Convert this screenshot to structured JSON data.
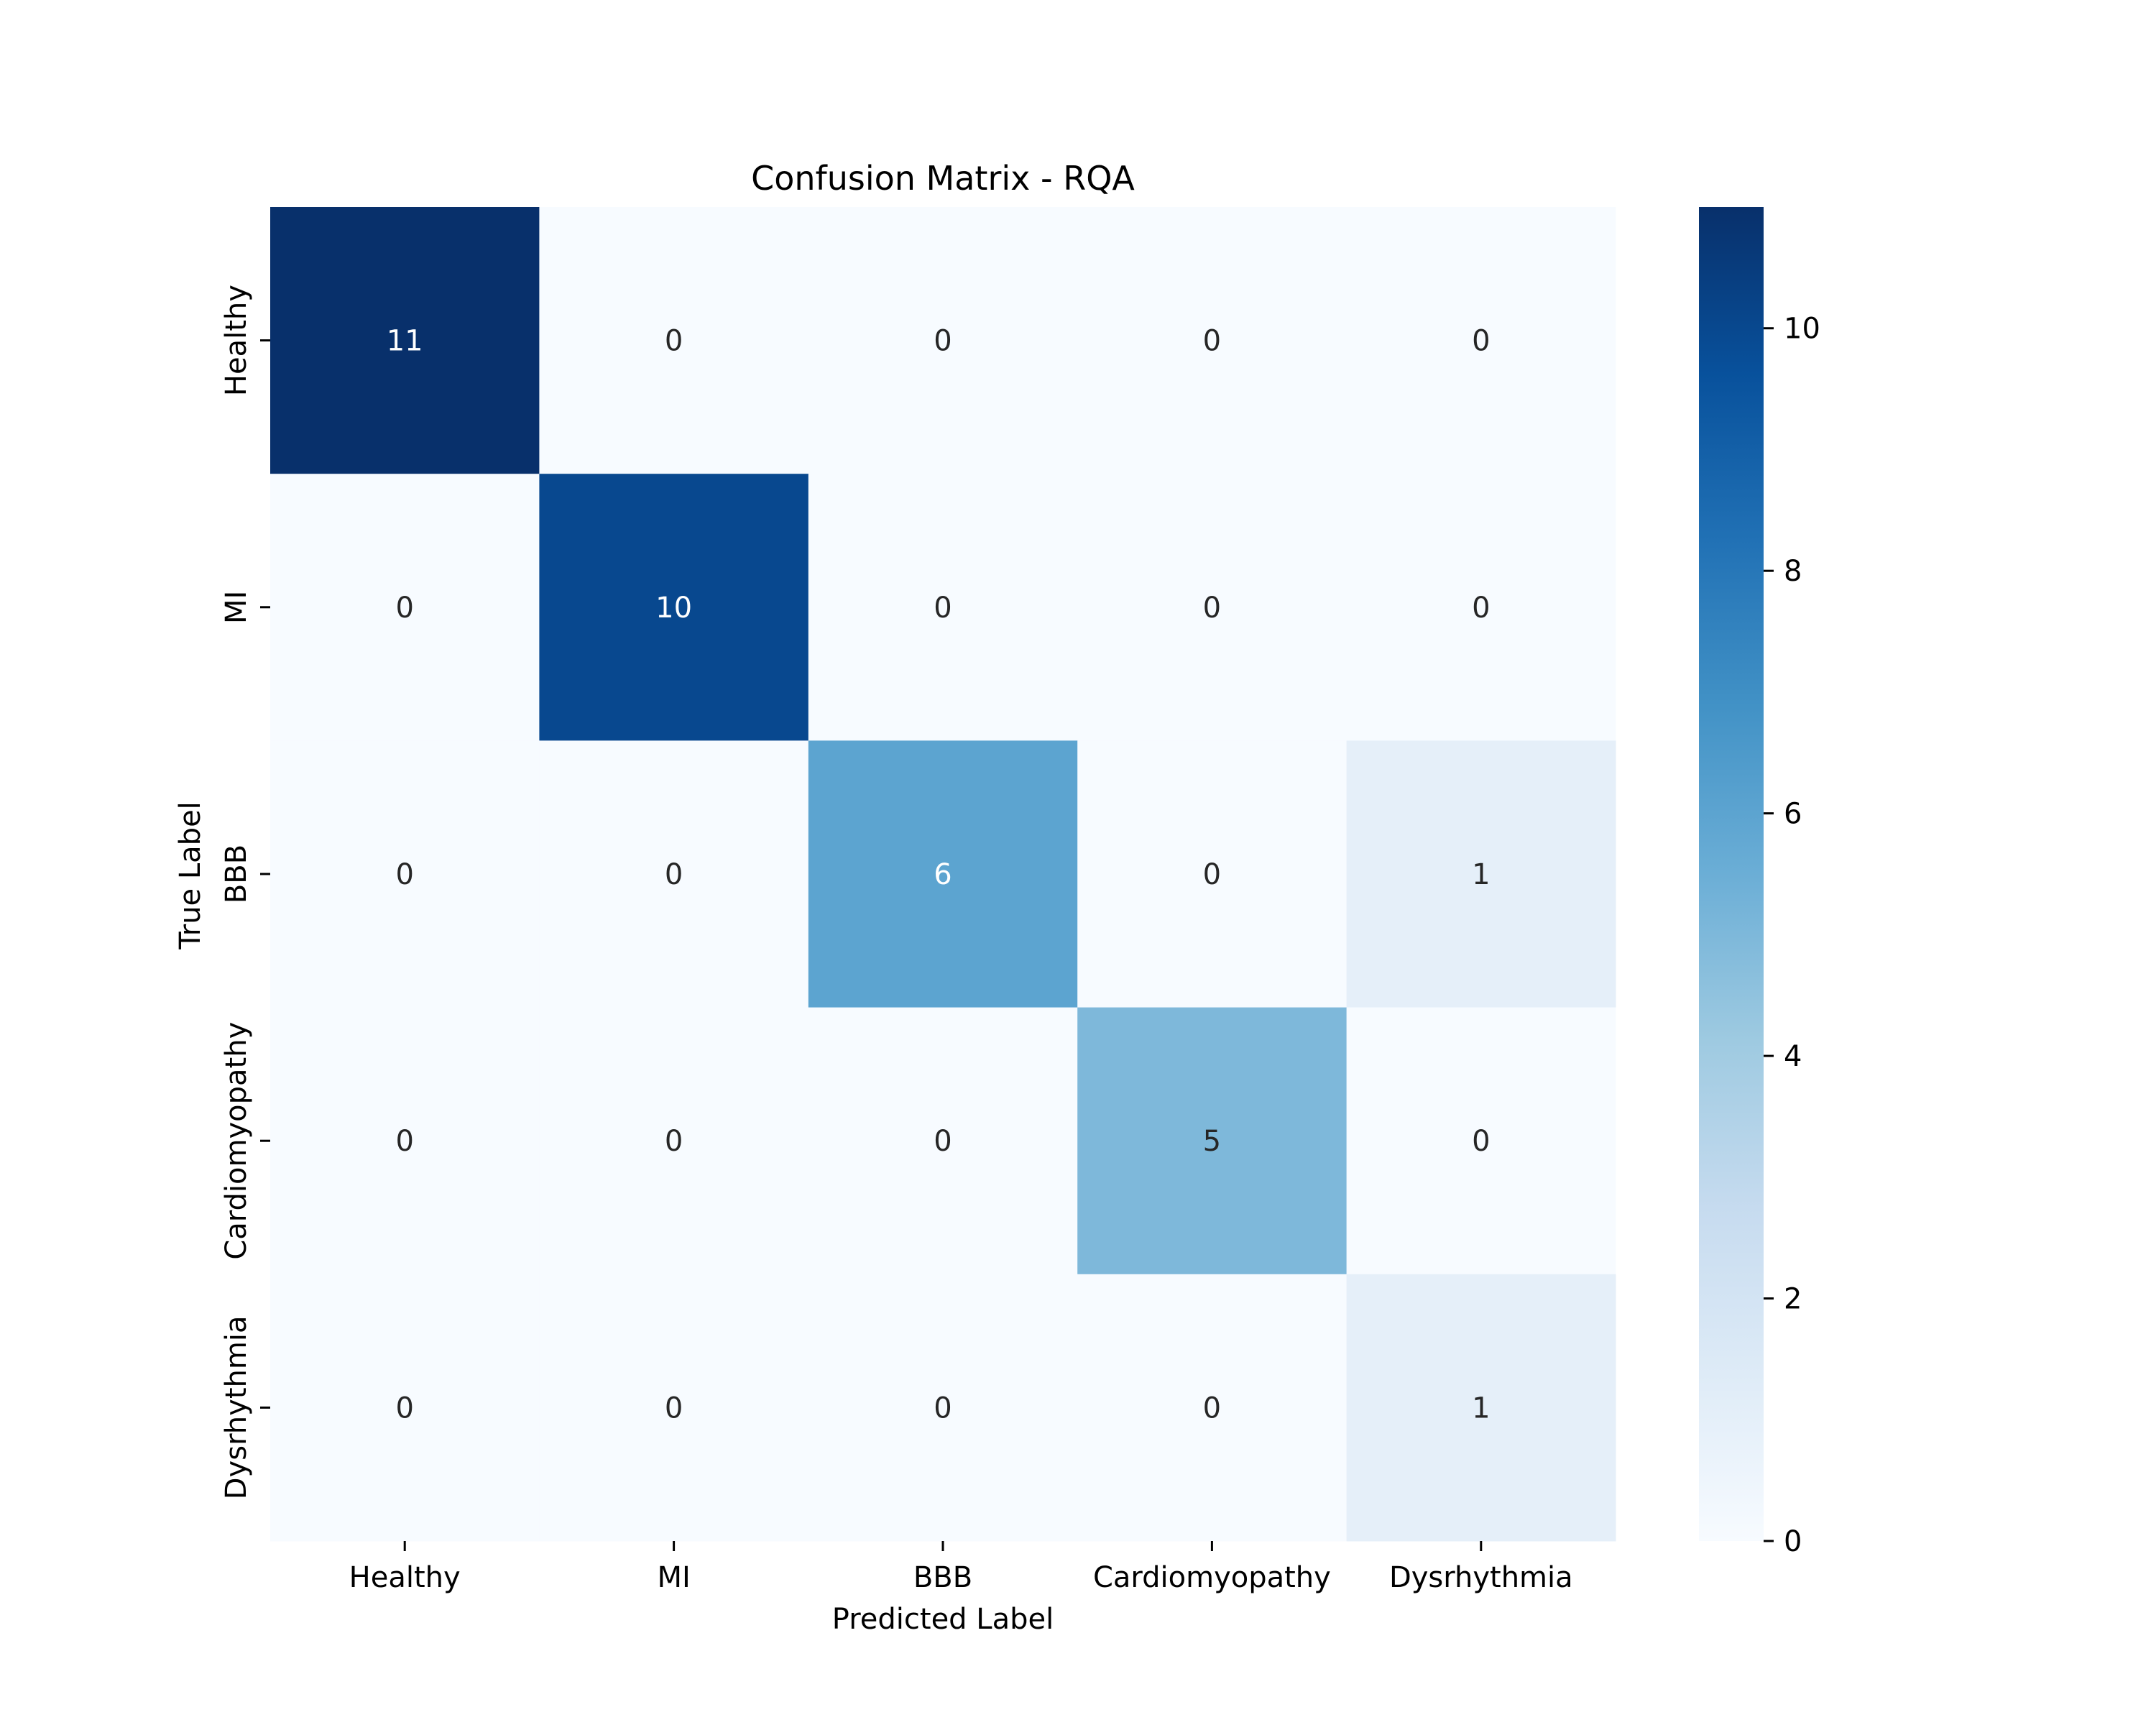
{
  "chart_data": {
    "type": "heatmap",
    "title": "Confusion Matrix - RQA",
    "xlabel": "Predicted Label",
    "ylabel": "True Label",
    "x_categories": [
      "Healthy",
      "MI",
      "BBB",
      "Cardiomyopathy",
      "Dysrhythmia"
    ],
    "y_categories": [
      "Healthy",
      "MI",
      "BBB",
      "Cardiomyopathy",
      "Dysrhythmia"
    ],
    "matrix": [
      [
        11,
        0,
        0,
        0,
        0
      ],
      [
        0,
        10,
        0,
        0,
        0
      ],
      [
        0,
        0,
        6,
        0,
        1
      ],
      [
        0,
        0,
        0,
        5,
        0
      ],
      [
        0,
        0,
        0,
        0,
        1
      ]
    ],
    "colormap": "Blues",
    "colorbar": {
      "range": [
        0,
        11
      ],
      "ticks": [
        0,
        2,
        4,
        6,
        8,
        10
      ],
      "tick_labels": [
        "0",
        "2",
        "4",
        "6",
        "8",
        "10"
      ]
    },
    "annotation_colors": {
      "dark_text": "#262626",
      "light_text": "#ffffff"
    }
  }
}
